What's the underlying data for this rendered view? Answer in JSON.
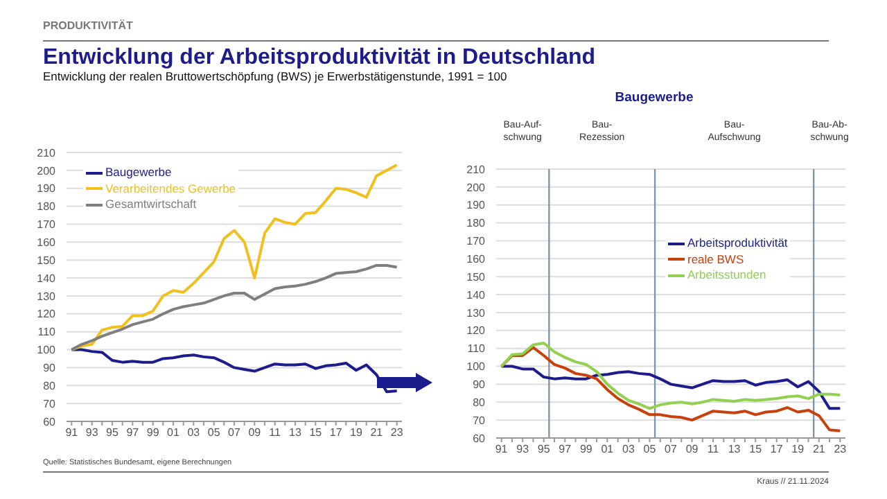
{
  "chart_data": [
    {
      "type": "line",
      "title": "Entwicklung der Arbeitsproduktivität in Deutschland",
      "subtitle": "Entwicklung der realen Bruttowertschöpfung (BWS) je Erwerbstätigenstunde, 1991 = 100",
      "annotations": [
        "PRODUKTIVITÄT",
        "Quelle: Statistisches Bundesamt, eigene Berechnungen",
        "Kraus // 21.11.2024"
      ],
      "x": [
        1991,
        1992,
        1993,
        1994,
        1995,
        1996,
        1997,
        1998,
        1999,
        2000,
        2001,
        2002,
        2003,
        2004,
        2005,
        2006,
        2007,
        2008,
        2009,
        2010,
        2011,
        2012,
        2013,
        2014,
        2015,
        2016,
        2017,
        2018,
        2019,
        2020,
        2021,
        2022,
        2023
      ],
      "series": [
        {
          "name": "Baugewerbe",
          "color": "#1c1c8f",
          "values": [
            100,
            100,
            99,
            98.5,
            94,
            93,
            93.5,
            93,
            93,
            95,
            95.5,
            96.5,
            97,
            96,
            95.5,
            93,
            90,
            89,
            88,
            90,
            92,
            91.5,
            91.5,
            92,
            89.5,
            91,
            91.5,
            92.5,
            88.5,
            91.5,
            86,
            76.5,
            77
          ]
        },
        {
          "name": "Verarbeitendes Gewerbe",
          "color": "#f2c01e",
          "values": [
            100,
            102,
            103,
            111,
            112.5,
            113,
            119,
            119,
            121.5,
            130,
            133,
            132,
            137,
            143,
            149,
            162,
            166.5,
            160,
            140,
            165,
            173,
            171,
            170,
            176,
            176.5,
            183,
            190,
            189.5,
            187.5,
            185,
            197,
            200,
            203
          ]
        },
        {
          "name": "Gesamtwirtschaft",
          "color": "#7f7f7f",
          "values": [
            100,
            103,
            105,
            107.5,
            109.5,
            111.5,
            114,
            115.5,
            117,
            120,
            122.5,
            124,
            125,
            126,
            128,
            130,
            131.5,
            131.5,
            128,
            131,
            134,
            135,
            135.5,
            136.5,
            138,
            140,
            142.5,
            143,
            143.5,
            145,
            147,
            147,
            146
          ]
        }
      ],
      "xlim": [
        1990.5,
        2023.5
      ],
      "xticks": [
        {
          "value": 1991,
          "label": "91"
        },
        {
          "value": 1992,
          "label": null
        },
        {
          "value": 1993,
          "label": "93"
        },
        {
          "value": 1994,
          "label": null
        },
        {
          "value": 1995,
          "label": "95"
        },
        {
          "value": 1996,
          "label": null
        },
        {
          "value": 1997,
          "label": "97"
        },
        {
          "value": 1998,
          "label": null
        },
        {
          "value": 1999,
          "label": "99"
        },
        {
          "value": 2000,
          "label": null
        },
        {
          "value": 2001,
          "label": "01"
        },
        {
          "value": 2002,
          "label": null
        },
        {
          "value": 2003,
          "label": "03"
        },
        {
          "value": 2004,
          "label": null
        },
        {
          "value": 2005,
          "label": "05"
        },
        {
          "value": 2006,
          "label": null
        },
        {
          "value": 2007,
          "label": "07"
        },
        {
          "value": 2008,
          "label": null
        },
        {
          "value": 2009,
          "label": "09"
        },
        {
          "value": 2010,
          "label": null
        },
        {
          "value": 2011,
          "label": "11"
        },
        {
          "value": 2012,
          "label": null
        },
        {
          "value": 2013,
          "label": "13"
        },
        {
          "value": 2014,
          "label": null
        },
        {
          "value": 2015,
          "label": "15"
        },
        {
          "value": 2016,
          "label": null
        },
        {
          "value": 2017,
          "label": "17"
        },
        {
          "value": 2018,
          "label": null
        },
        {
          "value": 2019,
          "label": "19"
        },
        {
          "value": 2020,
          "label": null
        },
        {
          "value": 2021,
          "label": "21"
        },
        {
          "value": 2022,
          "label": null
        },
        {
          "value": 2023,
          "label": "23"
        }
      ],
      "ylim": [
        60,
        210
      ],
      "yticks": [
        60,
        70,
        80,
        90,
        100,
        110,
        120,
        130,
        140,
        150,
        160,
        170,
        180,
        190,
        200,
        210
      ],
      "grid": "y",
      "legend": "top left",
      "marker": "none"
    },
    {
      "type": "line",
      "title": "Baugewerbe",
      "x": [
        1991,
        1992,
        1993,
        1994,
        1995,
        1996,
        1997,
        1998,
        1999,
        2000,
        2001,
        2002,
        2003,
        2004,
        2005,
        2006,
        2007,
        2008,
        2009,
        2010,
        2011,
        2012,
        2013,
        2014,
        2015,
        2016,
        2017,
        2018,
        2019,
        2020,
        2021,
        2022,
        2023
      ],
      "series": [
        {
          "name": "Arbeitsproduktivität",
          "color": "#1c1c8f",
          "values": [
            100,
            100,
            98.5,
            98.5,
            94,
            93,
            93.5,
            93,
            93,
            95,
            95.5,
            96.5,
            97,
            96,
            95.5,
            93,
            90,
            89,
            88,
            90,
            92,
            91.5,
            91.5,
            92,
            89.5,
            91,
            91.5,
            92.5,
            88.5,
            91.5,
            86,
            76.5,
            76.5
          ]
        },
        {
          "name": "reale BWS",
          "color": "#c8410c",
          "values": [
            100,
            106,
            106,
            110.5,
            106,
            101,
            99,
            96,
            95,
            93,
            87,
            82,
            78.5,
            76,
            73,
            73,
            72,
            71.5,
            70,
            72.5,
            75,
            74.5,
            74,
            75,
            73,
            74.5,
            75,
            77,
            74.5,
            75.5,
            72.5,
            64.5,
            64
          ]
        },
        {
          "name": "Arbeitsstunden",
          "color": "#92d050",
          "values": [
            100,
            106.5,
            107,
            112,
            113,
            108,
            105,
            102.5,
            101,
            97,
            90,
            85,
            81,
            79,
            76.5,
            78.5,
            79.5,
            80,
            79,
            80,
            81.5,
            81,
            80.5,
            81.5,
            81,
            81.5,
            82,
            83,
            83.5,
            82,
            84.5,
            84.5,
            84
          ]
        }
      ],
      "xlim": [
        1990.5,
        2023.5
      ],
      "xticks": [
        {
          "value": 1991,
          "label": "91"
        },
        {
          "value": 1992,
          "label": null
        },
        {
          "value": 1993,
          "label": "93"
        },
        {
          "value": 1994,
          "label": null
        },
        {
          "value": 1995,
          "label": "95"
        },
        {
          "value": 1996,
          "label": null
        },
        {
          "value": 1997,
          "label": "97"
        },
        {
          "value": 1998,
          "label": null
        },
        {
          "value": 1999,
          "label": "99"
        },
        {
          "value": 2000,
          "label": null
        },
        {
          "value": 2001,
          "label": "01"
        },
        {
          "value": 2002,
          "label": null
        },
        {
          "value": 2003,
          "label": "03"
        },
        {
          "value": 2004,
          "label": null
        },
        {
          "value": 2005,
          "label": "05"
        },
        {
          "value": 2006,
          "label": null
        },
        {
          "value": 2007,
          "label": "07"
        },
        {
          "value": 2008,
          "label": null
        },
        {
          "value": 2009,
          "label": "09"
        },
        {
          "value": 2010,
          "label": null
        },
        {
          "value": 2011,
          "label": "11"
        },
        {
          "value": 2012,
          "label": null
        },
        {
          "value": 2013,
          "label": "13"
        },
        {
          "value": 2014,
          "label": null
        },
        {
          "value": 2015,
          "label": "15"
        },
        {
          "value": 2016,
          "label": null
        },
        {
          "value": 2017,
          "label": "17"
        },
        {
          "value": 2018,
          "label": null
        },
        {
          "value": 2019,
          "label": "19"
        },
        {
          "value": 2020,
          "label": null
        },
        {
          "value": 2021,
          "label": "21"
        },
        {
          "value": 2022,
          "label": null
        },
        {
          "value": 2023,
          "label": "23"
        }
      ],
      "ylim": [
        60,
        210
      ],
      "yticks": [
        60,
        70,
        80,
        90,
        100,
        110,
        120,
        130,
        140,
        150,
        160,
        170,
        180,
        190,
        200,
        210
      ],
      "ref_lines": [
        {
          "axis": "x",
          "value": 1995.5,
          "color": "#8096aa"
        },
        {
          "axis": "x",
          "value": 2005.5,
          "color": "#8096aa"
        },
        {
          "axis": "x",
          "value": 2020.5,
          "color": "#8096aa"
        }
      ],
      "annotations": [
        "Bau-Auf-\nschwung",
        "Bau-\nRezession",
        "Bau-\nAufschwung",
        "Bau-Ab-\nschwung"
      ],
      "grid": "y",
      "legend": "right",
      "marker": "none"
    }
  ]
}
